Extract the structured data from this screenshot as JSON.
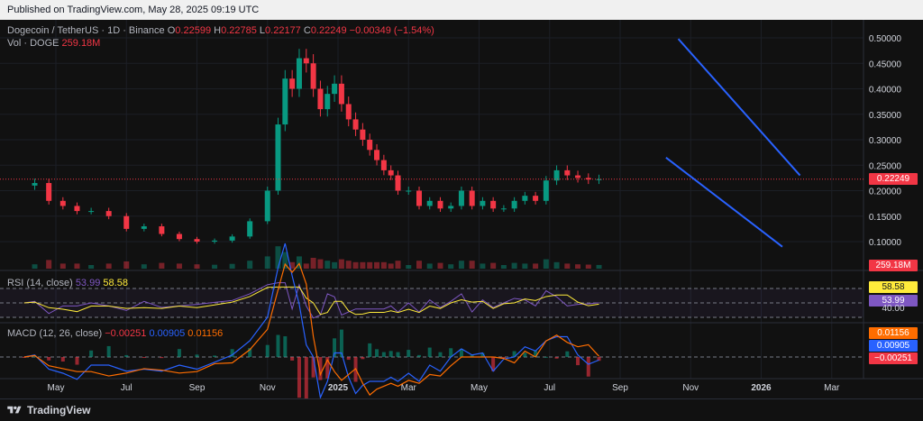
{
  "header": {
    "published": "Published on TradingView.com, May 28, 2025 09:19 UTC"
  },
  "legend": {
    "symbol": "Dogecoin / TetherUS · 1D · Binance",
    "o_label": "O",
    "o": "0.22599",
    "h_label": "H",
    "h": "0.22785",
    "l_label": "L",
    "l": "0.22177",
    "c_label": "C",
    "c": "0.22249",
    "change": "−0.00349 (−1.54%)",
    "vol_label": "Vol · DOGE",
    "vol": "259.18M"
  },
  "rsi_legend": {
    "label": "RSI (14, close)",
    "rsi": "53.99",
    "ma": "58.58"
  },
  "macd_legend": {
    "label": "MACD (12, 26, close)",
    "hist": "−0.00251",
    "macd": "0.00905",
    "signal": "0.01156"
  },
  "price_tags": {
    "last": "0.22249",
    "volume": "259.18M",
    "rsi_ma": "58.58",
    "rsi": "53.99",
    "rsi_lower": "40.00",
    "macd_signal": "0.01156",
    "macd": "0.00905",
    "macd_hist": "−0.00251"
  },
  "footer": {
    "brand": "TradingView"
  },
  "colors": {
    "up": "#089981",
    "down": "#f23645",
    "channel": "#2962ff",
    "rsi": "#7e57c2",
    "rsi_ma": "#ffeb3b",
    "macd": "#2962ff",
    "signal": "#ff6d00"
  },
  "chart_data": {
    "type": "candlestick",
    "title": "Dogecoin / TetherUS · 1D · Binance",
    "x_ticks": [
      "May",
      "Jul",
      "Sep",
      "Nov",
      "2025",
      "Mar",
      "May",
      "Jul",
      "Sep",
      "Nov",
      "2026",
      "Mar"
    ],
    "y_ticks": [
      "0.50000",
      "0.45000",
      "0.40000",
      "0.35000",
      "0.30000",
      "0.25000",
      "0.20000",
      "0.15000",
      "0.10000"
    ],
    "ylim": [
      0.075,
      0.51
    ],
    "x_month_ticks": [
      0,
      2,
      4,
      6,
      8,
      10,
      12,
      14,
      16,
      18,
      20,
      22
    ],
    "series": [
      {
        "name": "Close",
        "x": [
          -0.9,
          -0.6,
          -0.2,
          0.2,
          0.6,
          1,
          1.5,
          2,
          2.5,
          3,
          3.5,
          4,
          4.5,
          5,
          5.5,
          6,
          6.3,
          6.5,
          6.7,
          6.9,
          7.1,
          7.3,
          7.5,
          7.7,
          7.9,
          8.1,
          8.3,
          8.5,
          8.7,
          8.9,
          9.1,
          9.3,
          9.5,
          9.7,
          10,
          10.3,
          10.6,
          10.9,
          11.2,
          11.5,
          11.8,
          12.1,
          12.4,
          12.7,
          13,
          13.3,
          13.6,
          13.9,
          14.2,
          14.5,
          14.8,
          15.1,
          15.4
        ],
        "values": [
          0.21,
          0.215,
          0.18,
          0.17,
          0.16,
          0.16,
          0.15,
          0.125,
          0.13,
          0.115,
          0.105,
          0.1,
          0.102,
          0.11,
          0.14,
          0.2,
          0.33,
          0.42,
          0.4,
          0.46,
          0.45,
          0.4,
          0.36,
          0.39,
          0.41,
          0.37,
          0.34,
          0.32,
          0.3,
          0.28,
          0.26,
          0.24,
          0.23,
          0.2,
          0.2,
          0.17,
          0.18,
          0.165,
          0.17,
          0.2,
          0.17,
          0.18,
          0.165,
          0.165,
          0.18,
          0.19,
          0.18,
          0.22,
          0.24,
          0.23,
          0.225,
          0.222,
          0.2225
        ]
      }
    ],
    "channel": {
      "upper": [
        [
          17.65,
          0.498
        ],
        [
          21.1,
          0.23
        ]
      ],
      "lower": [
        [
          17.3,
          0.265
        ],
        [
          20.6,
          0.09
        ]
      ]
    },
    "last_price": 0.22249,
    "volume": {
      "name": "Vol · DOGE",
      "last": "259.18M"
    },
    "rsi": {
      "name": "RSI (14, close)",
      "last": 53.99,
      "ma": 58.58,
      "bands": [
        30,
        50,
        70
      ],
      "ylim": [
        20,
        90
      ],
      "tick": "40.00"
    },
    "macd": {
      "name": "MACD (12, 26, close)",
      "macd": 0.00905,
      "signal": 0.01156,
      "histogram": -0.00251
    }
  }
}
